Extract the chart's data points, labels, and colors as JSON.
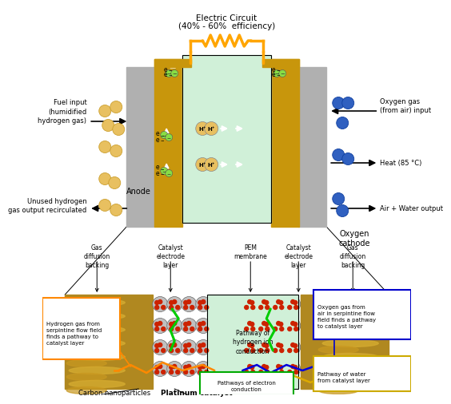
{
  "title_line1": "Electric Circuit",
  "title_line2": "(40% - 60%  efficiency)",
  "bg_color": "#ffffff",
  "anode_label": "Anode",
  "cathode_label": "Oxygen\ncathode",
  "fuel_input_label": "Fuel input\n(humidified\nhydrogen gas)",
  "oxygen_input_label": "Oxygen gas\n(from air) input",
  "heat_label": "Heat (85 °C)",
  "unused_h2_label": "Unused hydrogen\ngas output recirculated",
  "air_water_label": "Air + Water output",
  "layer_labels": [
    "Gas\ndiffusion\nbacking",
    "Catalyst\nelectrode\nlayer",
    "PEM\nmembrane",
    "Catalyst\nelectrode\nlayer",
    "Gas\ndiffusion\nbacking"
  ],
  "pem_center_label": "Pathway of\nhydrogen ion\nconduction",
  "h2_box_label": "Hydrogen gas from\nserpintine flow field\nfinds a pathway to\ncatalyst layer",
  "o2_box_label": "Oxygen gas from\nair in serpintine flow\nfield finds a pathway\nto catalyst layer",
  "water_box_label": "Pathway of water\nfrom catalyst layer",
  "carbon_label": "Carbon nanoparticles",
  "platinum_label": "Platinum catalyst",
  "electron_label": "Pathways of electron\nconduction",
  "gold_color": "#c8960c",
  "gray_plate": "#b0b0b0",
  "pem_color": "#d0f0d8",
  "orange_color": "#ffa500",
  "green_color": "#00aa00",
  "yellow_h2": "#e8c060",
  "blue_o2": "#3060c0",
  "dark_brown": "#7a5800",
  "tan_color": "#c8a030"
}
